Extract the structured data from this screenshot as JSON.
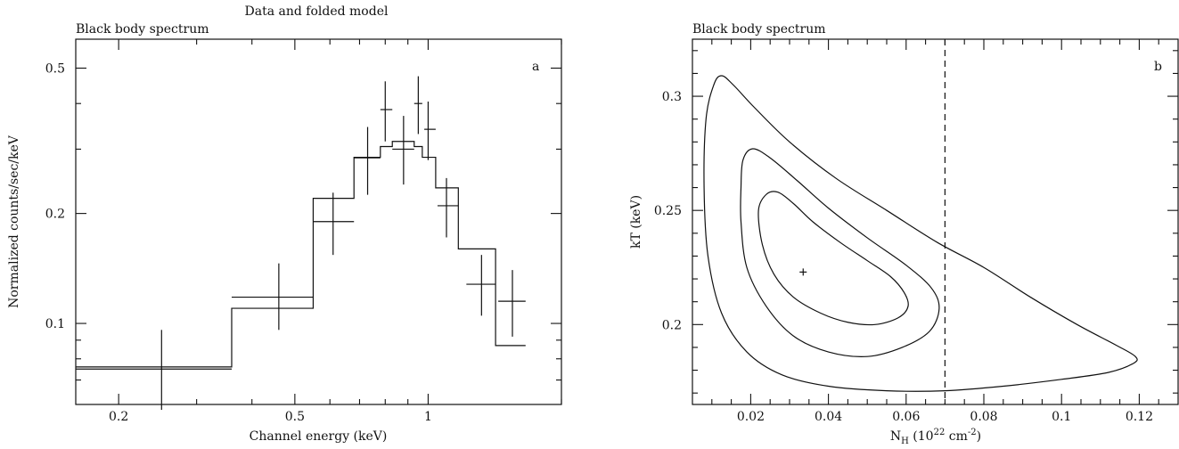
{
  "chart_data": [
    {
      "type": "line",
      "subtitle": "Data and folded model",
      "title": "Black body spectrum",
      "panel_label": "a",
      "xlabel": "Channel energy (keV)",
      "ylabel": "Normalized counts/sec/keV",
      "xscale": "log",
      "yscale": "log",
      "xlim": [
        0.16,
        2.0
      ],
      "ylim": [
        0.06,
        0.6
      ],
      "x_ticks": [
        0.2,
        0.5,
        1
      ],
      "x_tick_labels": [
        "0.2",
        "0.5",
        "1"
      ],
      "y_ticks": [
        0.1,
        0.2,
        0.5
      ],
      "y_tick_labels": [
        "0.1",
        "0.2",
        "0.5"
      ],
      "series": [
        {
          "kind": "data",
          "points": [
            {
              "x": 0.25,
              "xlo": 0.16,
              "xhi": 0.36,
              "y": 0.075,
              "ylo": 0.058,
              "yhi": 0.096
            },
            {
              "x": 0.46,
              "xlo": 0.36,
              "xhi": 0.55,
              "y": 0.118,
              "ylo": 0.096,
              "yhi": 0.146
            },
            {
              "x": 0.61,
              "xlo": 0.55,
              "xhi": 0.68,
              "y": 0.19,
              "ylo": 0.154,
              "yhi": 0.228
            },
            {
              "x": 0.73,
              "xlo": 0.68,
              "xhi": 0.78,
              "y": 0.284,
              "ylo": 0.225,
              "yhi": 0.345
            },
            {
              "x": 0.8,
              "xlo": 0.78,
              "xhi": 0.83,
              "y": 0.385,
              "ylo": 0.315,
              "yhi": 0.46
            },
            {
              "x": 0.88,
              "xlo": 0.83,
              "xhi": 0.93,
              "y": 0.3,
              "ylo": 0.24,
              "yhi": 0.37
            },
            {
              "x": 0.95,
              "xlo": 0.93,
              "xhi": 0.97,
              "y": 0.4,
              "ylo": 0.33,
              "yhi": 0.475
            },
            {
              "x": 1.0,
              "xlo": 0.98,
              "xhi": 1.04,
              "y": 0.34,
              "ylo": 0.28,
              "yhi": 0.405
            },
            {
              "x": 1.1,
              "xlo": 1.05,
              "xhi": 1.17,
              "y": 0.21,
              "ylo": 0.172,
              "yhi": 0.25
            },
            {
              "x": 1.32,
              "xlo": 1.22,
              "xhi": 1.42,
              "y": 0.128,
              "ylo": 0.105,
              "yhi": 0.154
            },
            {
              "x": 1.55,
              "xlo": 1.44,
              "xhi": 1.66,
              "y": 0.115,
              "ylo": 0.092,
              "yhi": 0.14
            }
          ]
        },
        {
          "kind": "model-step",
          "edges": [
            0.16,
            0.36,
            0.55,
            0.68,
            0.78,
            0.83,
            0.93,
            0.97,
            1.04,
            1.17,
            1.42,
            1.66
          ],
          "values": [
            0.076,
            0.11,
            0.22,
            0.285,
            0.305,
            0.315,
            0.305,
            0.285,
            0.235,
            0.16,
            0.087
          ]
        }
      ]
    },
    {
      "type": "contour",
      "title": "Black body spectrum",
      "panel_label": "b",
      "xlabel_main": "N",
      "xlabel_sub": "H",
      "xlabel_rest_a": " (10",
      "xlabel_exp_a": "22",
      "xlabel_rest_b": " cm",
      "xlabel_exp_b": "-2",
      "xlabel_rest_c": ")",
      "ylabel": "kT (keV)",
      "xlim": [
        0.005,
        0.13
      ],
      "ylim": [
        0.165,
        0.325
      ],
      "x_ticks": [
        0.02,
        0.04,
        0.06,
        0.08,
        0.1,
        0.12
      ],
      "x_tick_labels": [
        "0.02",
        "0.04",
        "0.06",
        "0.08",
        "0.1",
        "0.12"
      ],
      "y_ticks": [
        0.2,
        0.25,
        0.3
      ],
      "y_tick_labels": [
        "0.2",
        "0.25",
        "0.3"
      ],
      "best_fit": {
        "x": 0.0335,
        "y": 0.223
      },
      "reference_line_x": 0.07,
      "contours": [
        {
          "level": "inner",
          "points": [
            [
              0.022,
              0.25
            ],
            [
              0.024,
              0.257
            ],
            [
              0.027,
              0.258
            ],
            [
              0.031,
              0.253
            ],
            [
              0.036,
              0.245
            ],
            [
              0.043,
              0.236
            ],
            [
              0.05,
              0.228
            ],
            [
              0.056,
              0.221
            ],
            [
              0.0595,
              0.214
            ],
            [
              0.0605,
              0.208
            ],
            [
              0.058,
              0.203
            ],
            [
              0.052,
              0.2
            ],
            [
              0.045,
              0.201
            ],
            [
              0.038,
              0.205
            ],
            [
              0.031,
              0.212
            ],
            [
              0.026,
              0.222
            ],
            [
              0.023,
              0.235
            ],
            [
              0.022,
              0.25
            ]
          ]
        },
        {
          "level": "middle",
          "points": [
            [
              0.0175,
              0.26
            ],
            [
              0.018,
              0.272
            ],
            [
              0.0205,
              0.277
            ],
            [
              0.025,
              0.273
            ],
            [
              0.032,
              0.263
            ],
            [
              0.04,
              0.251
            ],
            [
              0.05,
              0.238
            ],
            [
              0.06,
              0.226
            ],
            [
              0.0665,
              0.216
            ],
            [
              0.0685,
              0.207
            ],
            [
              0.066,
              0.197
            ],
            [
              0.059,
              0.19
            ],
            [
              0.05,
              0.186
            ],
            [
              0.04,
              0.188
            ],
            [
              0.031,
              0.195
            ],
            [
              0.024,
              0.208
            ],
            [
              0.019,
              0.225
            ],
            [
              0.0175,
              0.245
            ],
            [
              0.0175,
              0.26
            ]
          ]
        },
        {
          "level": "outer",
          "points": [
            [
              0.0085,
              0.29
            ],
            [
              0.0105,
              0.305
            ],
            [
              0.0125,
              0.309
            ],
            [
              0.0155,
              0.305
            ],
            [
              0.021,
              0.295
            ],
            [
              0.03,
              0.28
            ],
            [
              0.042,
              0.264
            ],
            [
              0.055,
              0.25
            ],
            [
              0.068,
              0.236
            ],
            [
              0.08,
              0.225
            ],
            [
              0.092,
              0.212
            ],
            [
              0.104,
              0.2
            ],
            [
              0.114,
              0.191
            ],
            [
              0.119,
              0.186
            ],
            [
              0.1185,
              0.183
            ],
            [
              0.112,
              0.179
            ],
            [
              0.1,
              0.176
            ],
            [
              0.085,
              0.173
            ],
            [
              0.07,
              0.171
            ],
            [
              0.055,
              0.171
            ],
            [
              0.04,
              0.173
            ],
            [
              0.028,
              0.178
            ],
            [
              0.019,
              0.188
            ],
            [
              0.0125,
              0.205
            ],
            [
              0.009,
              0.23
            ],
            [
              0.008,
              0.26
            ],
            [
              0.0085,
              0.29
            ]
          ]
        }
      ]
    }
  ]
}
